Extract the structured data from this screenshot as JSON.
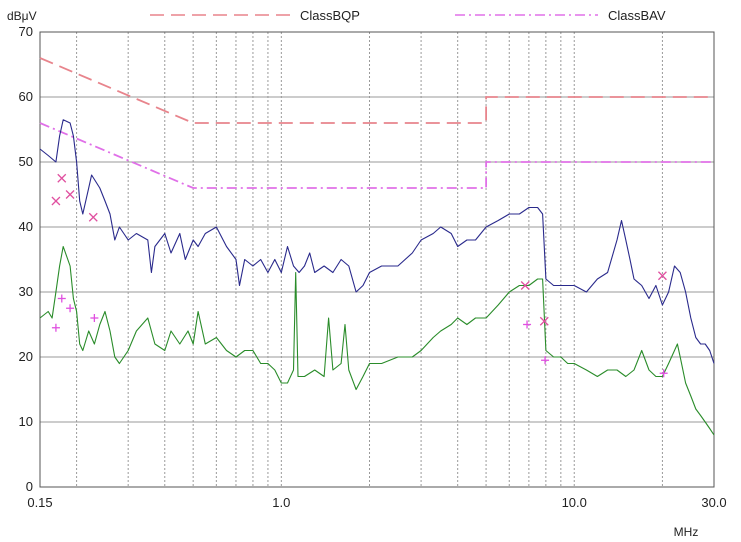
{
  "chart_data": {
    "type": "line",
    "yunit": "dBμV",
    "xunit": "MHz",
    "xscale": "log",
    "xlim": [
      0.15,
      30.0
    ],
    "ylim": [
      0,
      70
    ],
    "x_tick_labels": [
      "0.15",
      "1.0",
      "10.0",
      "30.0"
    ],
    "x_ticks": [
      0.15,
      1.0,
      10.0,
      30.0
    ],
    "y_ticks": [
      0,
      10,
      20,
      30,
      40,
      50,
      60,
      70
    ],
    "grid": true,
    "legend_position": "top",
    "limit_lines": [
      {
        "name": "ClassBQP",
        "color": "#e8848c",
        "style": "long-dash",
        "points": [
          [
            0.15,
            66
          ],
          [
            0.5,
            56
          ],
          [
            5.0,
            56
          ],
          [
            5.0,
            60
          ],
          [
            30.0,
            60
          ]
        ]
      },
      {
        "name": "ClassBAV",
        "color": "#e070e8",
        "style": "dash-dot",
        "points": [
          [
            0.15,
            56
          ],
          [
            0.5,
            46
          ],
          [
            5.0,
            46
          ],
          [
            5.0,
            50
          ],
          [
            30.0,
            50
          ]
        ]
      }
    ],
    "series": [
      {
        "color": "#2a2a8c",
        "points": [
          [
            0.15,
            52
          ],
          [
            0.16,
            51
          ],
          [
            0.17,
            50
          ],
          [
            0.175,
            54
          ],
          [
            0.18,
            56.5
          ],
          [
            0.19,
            56
          ],
          [
            0.195,
            54
          ],
          [
            0.2,
            50
          ],
          [
            0.205,
            44
          ],
          [
            0.21,
            42
          ],
          [
            0.22,
            46
          ],
          [
            0.225,
            48
          ],
          [
            0.24,
            46
          ],
          [
            0.25,
            44
          ],
          [
            0.26,
            42
          ],
          [
            0.27,
            38
          ],
          [
            0.28,
            40
          ],
          [
            0.3,
            38
          ],
          [
            0.32,
            39
          ],
          [
            0.35,
            38
          ],
          [
            0.36,
            33
          ],
          [
            0.37,
            37
          ],
          [
            0.4,
            39
          ],
          [
            0.42,
            36
          ],
          [
            0.45,
            39
          ],
          [
            0.47,
            35
          ],
          [
            0.5,
            38
          ],
          [
            0.52,
            37
          ],
          [
            0.55,
            39
          ],
          [
            0.6,
            40
          ],
          [
            0.65,
            37
          ],
          [
            0.7,
            35
          ],
          [
            0.72,
            31
          ],
          [
            0.75,
            35
          ],
          [
            0.8,
            34
          ],
          [
            0.85,
            35
          ],
          [
            0.9,
            33
          ],
          [
            0.95,
            35
          ],
          [
            1.0,
            33
          ],
          [
            1.05,
            37
          ],
          [
            1.1,
            34
          ],
          [
            1.15,
            33
          ],
          [
            1.2,
            34
          ],
          [
            1.25,
            36
          ],
          [
            1.3,
            33
          ],
          [
            1.4,
            34
          ],
          [
            1.5,
            33
          ],
          [
            1.6,
            35
          ],
          [
            1.7,
            34
          ],
          [
            1.8,
            30
          ],
          [
            1.9,
            31
          ],
          [
            2.0,
            33
          ],
          [
            2.2,
            34
          ],
          [
            2.5,
            34
          ],
          [
            2.8,
            36
          ],
          [
            3.0,
            38
          ],
          [
            3.3,
            39
          ],
          [
            3.5,
            40
          ],
          [
            3.8,
            39
          ],
          [
            4.0,
            37
          ],
          [
            4.3,
            38
          ],
          [
            4.6,
            38
          ],
          [
            5.0,
            40
          ],
          [
            5.5,
            41
          ],
          [
            6.0,
            42
          ],
          [
            6.5,
            42
          ],
          [
            7.0,
            43
          ],
          [
            7.5,
            43
          ],
          [
            7.8,
            42
          ],
          [
            8.0,
            32
          ],
          [
            8.5,
            31
          ],
          [
            9.0,
            31
          ],
          [
            9.5,
            31
          ],
          [
            10.0,
            31
          ],
          [
            11.0,
            30
          ],
          [
            12.0,
            32
          ],
          [
            13.0,
            33
          ],
          [
            14.0,
            38
          ],
          [
            14.5,
            41
          ],
          [
            15.0,
            38
          ],
          [
            15.5,
            35
          ],
          [
            16.0,
            32
          ],
          [
            17.0,
            31
          ],
          [
            18.0,
            29
          ],
          [
            19.0,
            31
          ],
          [
            20.0,
            28
          ],
          [
            21.0,
            30
          ],
          [
            22.0,
            34
          ],
          [
            23.0,
            33
          ],
          [
            24.0,
            30
          ],
          [
            25.0,
            26
          ],
          [
            26.0,
            23
          ],
          [
            27.0,
            22
          ],
          [
            28.0,
            22
          ],
          [
            29.0,
            21
          ],
          [
            30.0,
            19
          ]
        ]
      },
      {
        "color": "#2a8c2a",
        "points": [
          [
            0.15,
            26
          ],
          [
            0.16,
            27
          ],
          [
            0.165,
            26
          ],
          [
            0.17,
            30
          ],
          [
            0.175,
            34
          ],
          [
            0.18,
            37
          ],
          [
            0.19,
            34
          ],
          [
            0.195,
            29
          ],
          [
            0.2,
            27
          ],
          [
            0.205,
            22
          ],
          [
            0.21,
            21
          ],
          [
            0.22,
            24
          ],
          [
            0.23,
            22
          ],
          [
            0.24,
            25
          ],
          [
            0.25,
            27
          ],
          [
            0.26,
            24
          ],
          [
            0.27,
            20
          ],
          [
            0.28,
            19
          ],
          [
            0.3,
            21
          ],
          [
            0.32,
            24
          ],
          [
            0.35,
            26
          ],
          [
            0.37,
            22
          ],
          [
            0.4,
            21
          ],
          [
            0.42,
            24
          ],
          [
            0.45,
            22
          ],
          [
            0.48,
            24
          ],
          [
            0.5,
            22
          ],
          [
            0.52,
            27
          ],
          [
            0.55,
            22
          ],
          [
            0.6,
            23
          ],
          [
            0.65,
            21
          ],
          [
            0.7,
            20
          ],
          [
            0.75,
            21
          ],
          [
            0.8,
            21
          ],
          [
            0.85,
            19
          ],
          [
            0.9,
            19
          ],
          [
            0.95,
            18
          ],
          [
            1.0,
            16
          ],
          [
            1.05,
            16
          ],
          [
            1.1,
            18
          ],
          [
            1.12,
            33
          ],
          [
            1.14,
            17
          ],
          [
            1.2,
            17
          ],
          [
            1.3,
            18
          ],
          [
            1.4,
            17
          ],
          [
            1.45,
            26
          ],
          [
            1.5,
            18
          ],
          [
            1.6,
            19
          ],
          [
            1.65,
            25
          ],
          [
            1.7,
            18
          ],
          [
            1.8,
            15
          ],
          [
            1.9,
            17
          ],
          [
            2.0,
            19
          ],
          [
            2.2,
            19
          ],
          [
            2.5,
            20
          ],
          [
            2.8,
            20
          ],
          [
            3.0,
            21
          ],
          [
            3.3,
            23
          ],
          [
            3.5,
            24
          ],
          [
            3.8,
            25
          ],
          [
            4.0,
            26
          ],
          [
            4.3,
            25
          ],
          [
            4.6,
            26
          ],
          [
            5.0,
            26
          ],
          [
            5.5,
            28
          ],
          [
            6.0,
            30
          ],
          [
            6.5,
            31
          ],
          [
            7.0,
            31
          ],
          [
            7.5,
            32
          ],
          [
            7.8,
            32
          ],
          [
            8.0,
            21
          ],
          [
            8.5,
            20
          ],
          [
            9.0,
            20
          ],
          [
            9.5,
            19
          ],
          [
            10.0,
            19
          ],
          [
            11.0,
            18
          ],
          [
            12.0,
            17
          ],
          [
            13.0,
            18
          ],
          [
            14.0,
            18
          ],
          [
            15.0,
            17
          ],
          [
            16.0,
            18
          ],
          [
            17.0,
            21
          ],
          [
            18.0,
            18
          ],
          [
            19.0,
            17
          ],
          [
            20.0,
            17
          ],
          [
            21.0,
            19
          ],
          [
            22.0,
            21
          ],
          [
            22.5,
            22
          ],
          [
            23.0,
            20
          ],
          [
            24.0,
            16
          ],
          [
            25.0,
            14
          ],
          [
            26.0,
            12
          ],
          [
            27.0,
            11
          ],
          [
            28.0,
            10
          ],
          [
            29.0,
            9
          ],
          [
            30.0,
            8
          ]
        ]
      }
    ],
    "markers": [
      {
        "symbol": "x",
        "color": "#e050a0",
        "points": [
          [
            0.178,
            47.5
          ],
          [
            0.17,
            44
          ],
          [
            0.19,
            45
          ],
          [
            0.228,
            41.5
          ],
          [
            6.8,
            31
          ],
          [
            7.9,
            25.5
          ],
          [
            20.0,
            32.5
          ]
        ]
      },
      {
        "symbol": "+",
        "color": "#e050e0",
        "points": [
          [
            0.17,
            24.5
          ],
          [
            0.178,
            29
          ],
          [
            0.19,
            27.5
          ],
          [
            0.23,
            26
          ],
          [
            6.9,
            25
          ],
          [
            7.95,
            19.5
          ],
          [
            20.2,
            17.5
          ]
        ]
      }
    ]
  }
}
